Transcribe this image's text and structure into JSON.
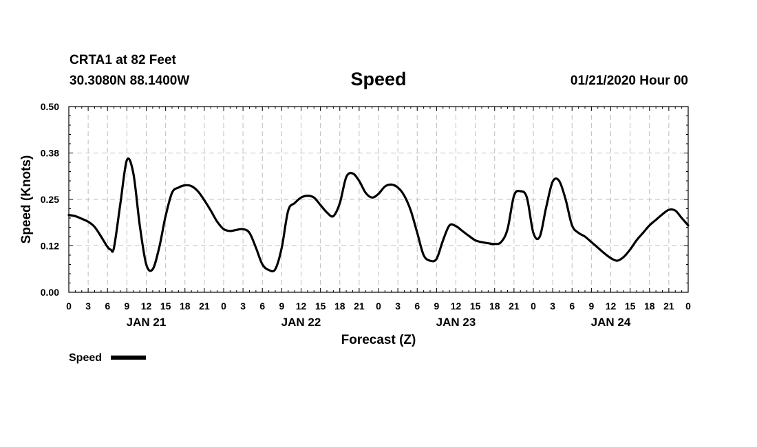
{
  "header": {
    "station": "CRTA1 at 82 Feet",
    "coords": "30.3080N 88.1400W",
    "title": "Speed",
    "datetime": "01/21/2020 Hour 00"
  },
  "chart_data": {
    "type": "line",
    "title": "Speed",
    "xlabel": "Forecast (Z)",
    "ylabel": "Speed (Knots)",
    "ylim": [
      0,
      0.5
    ],
    "yticks": [
      0.0,
      0.125,
      0.25,
      0.375,
      0.5
    ],
    "ytick_labels": [
      "0.00",
      "0.12",
      "0.25",
      "0.38",
      "0.50"
    ],
    "xlim": [
      0,
      96
    ],
    "xticks": [
      0,
      3,
      6,
      9,
      12,
      15,
      18,
      21,
      24,
      27,
      30,
      33,
      36,
      39,
      42,
      45,
      48,
      51,
      54,
      57,
      60,
      63,
      66,
      69,
      72,
      75,
      78,
      81,
      84,
      87,
      90,
      93,
      96
    ],
    "xtick_labels": [
      "0",
      "3",
      "6",
      "9",
      "12",
      "15",
      "18",
      "21",
      "0",
      "3",
      "6",
      "9",
      "12",
      "15",
      "18",
      "21",
      "0",
      "3",
      "6",
      "9",
      "12",
      "15",
      "18",
      "21",
      "0",
      "3",
      "6",
      "9",
      "12",
      "15",
      "18",
      "21",
      "0"
    ],
    "day_labels": [
      {
        "x": 12,
        "label": "JAN 21"
      },
      {
        "x": 36,
        "label": "JAN 22"
      },
      {
        "x": 60,
        "label": "JAN 23"
      },
      {
        "x": 84,
        "label": "JAN 24"
      }
    ],
    "grid": true,
    "legend": {
      "placement": "bottom-left",
      "label": "Speed"
    },
    "series": [
      {
        "name": "Speed",
        "color": "#000000",
        "x": [
          0,
          1,
          2,
          3,
          4,
          5,
          6,
          6.5,
          7,
          8,
          9,
          10,
          11,
          12,
          13,
          14,
          15,
          16,
          17,
          18,
          19,
          20,
          21,
          22,
          23,
          24,
          25,
          26,
          27,
          28,
          29,
          30,
          31,
          32,
          33,
          34,
          35,
          36,
          37,
          38,
          39,
          40,
          41,
          42,
          43,
          44,
          45,
          46,
          47,
          48,
          49,
          50,
          51,
          52,
          53,
          54,
          55,
          56,
          57,
          58,
          59,
          60,
          61,
          62,
          63,
          64,
          65,
          66,
          67,
          68,
          69,
          70,
          71,
          72,
          73,
          74,
          75,
          76,
          77,
          78,
          79,
          80,
          81,
          82,
          83,
          84,
          85,
          86,
          87,
          88,
          89,
          90,
          91,
          92,
          93,
          94,
          95,
          96
        ],
        "values": [
          0.208,
          0.205,
          0.198,
          0.19,
          0.176,
          0.15,
          0.122,
          0.115,
          0.12,
          0.24,
          0.356,
          0.32,
          0.18,
          0.075,
          0.062,
          0.12,
          0.205,
          0.268,
          0.282,
          0.288,
          0.286,
          0.272,
          0.248,
          0.22,
          0.19,
          0.17,
          0.165,
          0.168,
          0.17,
          0.16,
          0.12,
          0.075,
          0.06,
          0.062,
          0.12,
          0.22,
          0.24,
          0.255,
          0.26,
          0.255,
          0.235,
          0.215,
          0.205,
          0.24,
          0.31,
          0.32,
          0.3,
          0.268,
          0.255,
          0.265,
          0.285,
          0.29,
          0.282,
          0.26,
          0.22,
          0.16,
          0.1,
          0.085,
          0.09,
          0.14,
          0.18,
          0.178,
          0.165,
          0.152,
          0.14,
          0.135,
          0.132,
          0.13,
          0.135,
          0.17,
          0.26,
          0.272,
          0.255,
          0.16,
          0.15,
          0.23,
          0.298,
          0.3,
          0.25,
          0.18,
          0.16,
          0.15,
          0.135,
          0.12,
          0.105,
          0.092,
          0.085,
          0.095,
          0.115,
          0.14,
          0.16,
          0.18,
          0.195,
          0.21,
          0.222,
          0.22,
          0.2,
          0.18
        ]
      }
    ]
  }
}
